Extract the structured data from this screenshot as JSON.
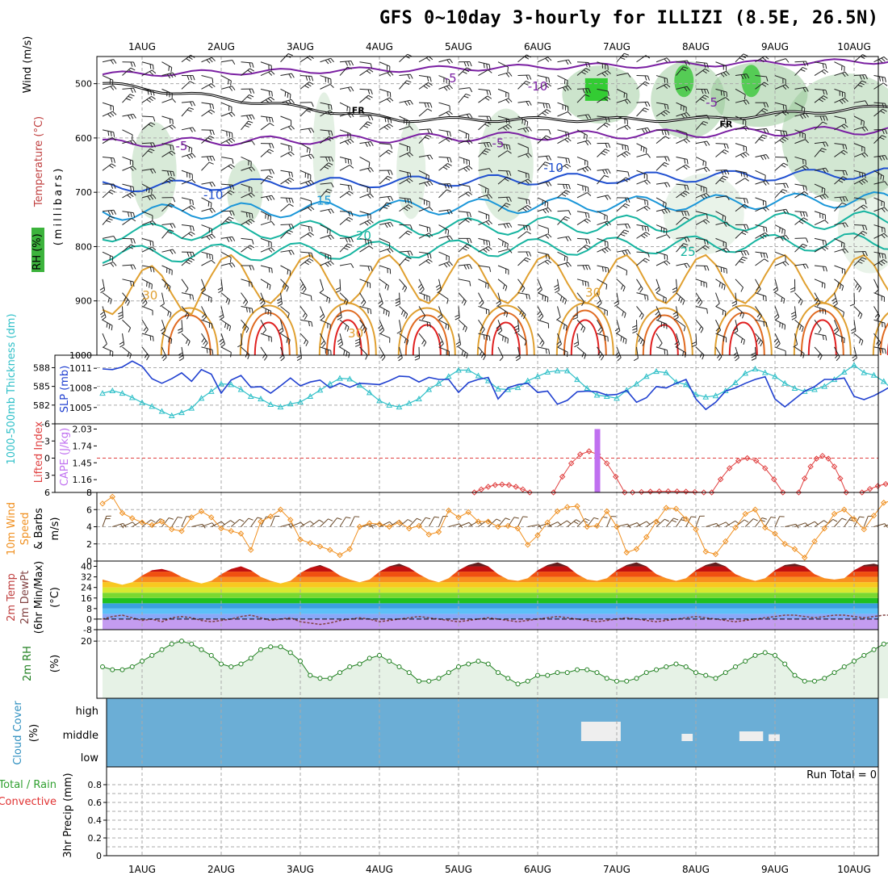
{
  "title": "GFS 0~10day 3-hourly for ILLIZI (8.5E, 26.5N)",
  "dates": [
    "1AUG",
    "2AUG",
    "3AUG",
    "4AUG",
    "5AUG",
    "6AUG",
    "7AUG",
    "8AUG",
    "9AUG",
    "10AUG"
  ],
  "run_total_label": "Run Total = 0",
  "colors": {
    "temp_cold": "#7a1fa2",
    "temp_blue": "#1f4fd0",
    "temp_lightblue": "#1a96d8",
    "temp_teal": "#16b4a0",
    "temp_orange": "#e0a030",
    "temp_dark_orange": "#e06a20",
    "temp_red": "#e02020",
    "slp": "#2040d0",
    "thickness": "#30c0c8",
    "lifted": "#e04040",
    "cape": "#c070f0",
    "wind10": "#f09020",
    "rh2m": "#208020",
    "cloud_bg": "#6baed6"
  },
  "chart_data": [
    {
      "type": "line",
      "name": "upper-air",
      "ylabel_parts": [
        "Wind (m/s)",
        "Temperature (°C)",
        "RH (%)"
      ],
      "ylabel_unit": "(millibars)",
      "ylim": [
        450,
        1000
      ],
      "yticks": [
        500,
        600,
        700,
        800,
        900,
        1000
      ],
      "contour_labels": [
        {
          "text": "-5",
          "day": 3.9,
          "p": 490,
          "color": "temp_cold"
        },
        {
          "text": "-5",
          "day": 0.5,
          "p": 615,
          "color": "temp_cold"
        },
        {
          "text": "-5",
          "day": 4.5,
          "p": 610,
          "color": "temp_cold"
        },
        {
          "text": "-5",
          "day": 7.2,
          "p": 535,
          "color": "temp_cold"
        },
        {
          "text": "-10",
          "day": 5.0,
          "p": 505,
          "color": "temp_cold"
        },
        {
          "text": "-10",
          "day": 0.9,
          "p": 705,
          "color": "temp_blue"
        },
        {
          "text": "-10",
          "day": 5.2,
          "p": 655,
          "color": "temp_blue"
        },
        {
          "text": "15",
          "day": 2.3,
          "p": 715,
          "color": "temp_lightblue"
        },
        {
          "text": "20",
          "day": 2.8,
          "p": 780,
          "color": "temp_teal"
        },
        {
          "text": "25",
          "day": 6.9,
          "p": 810,
          "color": "temp_teal"
        },
        {
          "text": "30",
          "day": 0.1,
          "p": 890,
          "color": "temp_orange"
        },
        {
          "text": "30",
          "day": 5.7,
          "p": 885,
          "color": "temp_orange"
        },
        {
          "text": "30",
          "day": 2.7,
          "p": 960,
          "color": "temp_orange"
        }
      ],
      "freezing_label": "FR"
    },
    {
      "type": "line",
      "name": "slp-thickness",
      "ylabel_left": "1000-500mb Thickness (dm)",
      "ylabel_right": "SLP (mb)",
      "thickness_ticks": [
        582,
        585,
        588
      ],
      "slp_ticks": [
        1005,
        1008,
        1011
      ],
      "series": [
        {
          "name": "SLP (mb)",
          "values": [
            1010.9,
            1010.8,
            1011.2,
            1012.1,
            1011.3,
            1009.4,
            1008.7,
            1009.4,
            1010.3,
            1009.0,
            1010.8,
            1010.1,
            1007.2,
            1009.2,
            1009.9,
            1008.1,
            1008.2,
            1007.2,
            1008.3,
            1009.5,
            1008.3,
            1008.9,
            1009.2,
            1008.0,
            1008.7,
            1008.1,
            1008.7,
            1008.6,
            1008.5,
            1009.1,
            1009.8,
            1009.7,
            1008.9,
            1009.6,
            1009.3,
            1009.3,
            1007.3,
            1008.8,
            1009.3,
            1009.6,
            1006.3,
            1008.0,
            1008.5,
            1008.7,
            1007.3,
            1007.5,
            1005.5,
            1006.1,
            1007.4,
            1007.5,
            1007.4,
            1006.9,
            1007.0,
            1007.6,
            1005.8,
            1006.5,
            1008.2,
            1008.0,
            1008.7,
            1009.3,
            1006.3,
            1004.7,
            1005.8,
            1007.5,
            1008.0,
            1008.7,
            1009.3,
            1009.7,
            1006.3,
            1005.1,
            1006.3,
            1007.5,
            1008.2,
            1009.3,
            1009.3,
            1009.5,
            1006.7,
            1006.2,
            1006.8,
            1007.6,
            1008.5
          ]
        },
        {
          "name": "Thickness (dm)",
          "values": [
            583.9,
            584.3,
            583.9,
            583.2,
            582.4,
            581.8,
            581.0,
            580.3,
            580.8,
            581.5,
            583.1,
            584.2,
            585.4,
            585.3,
            584.5,
            583.4,
            583.0,
            582.1,
            581.7,
            582.2,
            582.5,
            583.4,
            584.4,
            585.4,
            586.3,
            586.2,
            585.2,
            584.0,
            582.7,
            582.0,
            581.7,
            582.3,
            583.0,
            584.5,
            585.5,
            586.6,
            587.6,
            587.6,
            586.7,
            585.9,
            584.6,
            584.5,
            584.8,
            585.9,
            586.6,
            587.3,
            587.5,
            587.5,
            586.1,
            584.7,
            583.6,
            583.4,
            583.1,
            584.4,
            585.4,
            586.6,
            587.4,
            587.2,
            585.7,
            585.3,
            583.7,
            583.3,
            583.5,
            584.3,
            585.6,
            587.1,
            587.8,
            587.2,
            586.6,
            585.5,
            584.7,
            584.2,
            584.5,
            585.0,
            586.1,
            587.3,
            588.4,
            587.2,
            586.8,
            585.8,
            584.3
          ]
        }
      ]
    },
    {
      "type": "line",
      "name": "lifted-cape",
      "ylabel_left": "Lifted Index",
      "ylabel_right": "CAPE (J/kg)",
      "li_ticks": [
        -6,
        -3,
        0,
        3,
        6
      ],
      "cape_ticks": [
        1.16,
        1.45,
        1.74,
        2.03
      ],
      "cape_bar": {
        "day": 5.75,
        "value": 2.03
      }
    },
    {
      "type": "line",
      "name": "10m-wind",
      "ylabel": "10m Wind Speed & Barbs (m/s)",
      "ylim": [
        0,
        8
      ],
      "yticks": [
        0,
        2,
        4,
        6,
        8
      ],
      "values": [
        6.7,
        7.5,
        5.6,
        5.0,
        4.5,
        4.2,
        4.6,
        3.7,
        3.5,
        5.1,
        5.8,
        5.1,
        3.8,
        3.5,
        3.2,
        1.3,
        4.6,
        5.2,
        6.0,
        4.8,
        2.5,
        2.1,
        1.7,
        1.3,
        0.7,
        1.4,
        4.0,
        4.4,
        4.3,
        4.0,
        4.5,
        3.8,
        4.1,
        3.1,
        3.4,
        5.9,
        5.1,
        5.7,
        4.6,
        4.6,
        4.0,
        4.1,
        3.8,
        1.9,
        3.0,
        4.5,
        5.8,
        6.3,
        6.4,
        4.0,
        4.1,
        5.8,
        4.0,
        1.0,
        1.4,
        2.8,
        4.6,
        6.2,
        6.1,
        4.9,
        3.7,
        1.1,
        0.8,
        2.3,
        3.9,
        5.5,
        6.0,
        3.9,
        3.2,
        2.0,
        1.4,
        0.4,
        2.3,
        3.8,
        5.5,
        6.0,
        4.9,
        3.7,
        5.3,
        6.8,
        7.1
      ]
    },
    {
      "type": "area",
      "name": "2m-temp",
      "ylabel": "2m Temp 2m DewPt (6hr Min/Max) (°C)",
      "ylim": [
        -8,
        44
      ],
      "yticks": [
        -8,
        0,
        8,
        16,
        24,
        32,
        40
      ],
      "temp": [
        30,
        28,
        26,
        28,
        33,
        37,
        38,
        36,
        32,
        29,
        27,
        29,
        34,
        38,
        40,
        37,
        32,
        29,
        27,
        29,
        35,
        39,
        41,
        38,
        33,
        30,
        28,
        30,
        36,
        40,
        42,
        39,
        34,
        30,
        28,
        31,
        37,
        41,
        43,
        40,
        34,
        30,
        29,
        31,
        37,
        41,
        43,
        40,
        34,
        30,
        29,
        31,
        37,
        41,
        43,
        40,
        34,
        31,
        29,
        31,
        37,
        41,
        43,
        40,
        34,
        31,
        29,
        31,
        37,
        41,
        42,
        40,
        34,
        31,
        30,
        31,
        37,
        41,
        42,
        40,
        34
      ],
      "dewpoint": [
        0,
        2,
        3,
        1,
        -1,
        0,
        -2,
        1,
        2,
        1,
        -1,
        -2,
        -1,
        0,
        2,
        3,
        1,
        -1,
        0,
        1,
        -2,
        -3,
        -4,
        -3,
        -1,
        0,
        1,
        0,
        -2,
        -1,
        0,
        1,
        2,
        1,
        0,
        -1,
        -2,
        -1,
        0,
        1,
        0,
        -1,
        -2,
        -1,
        0,
        1,
        2,
        1,
        0,
        -1,
        -2,
        -1,
        0,
        1,
        0,
        -1,
        -2,
        -1,
        0,
        1,
        2,
        1,
        0,
        -1,
        -2,
        -1,
        0,
        1,
        2,
        3,
        3,
        2,
        1,
        2,
        3,
        3,
        2,
        1,
        2,
        3,
        3
      ]
    },
    {
      "type": "line",
      "name": "2m-rh",
      "ylabel": "2m RH (%)",
      "ylim": [
        0,
        24
      ],
      "yticks": [
        20
      ],
      "values": [
        11,
        10,
        10,
        11,
        13,
        15,
        17,
        19,
        20,
        19,
        17,
        15,
        12,
        11,
        12,
        14,
        17,
        18,
        18,
        16,
        13,
        8,
        7,
        7,
        9,
        11,
        12,
        14,
        15,
        13,
        11,
        9,
        6,
        6,
        7,
        9,
        11,
        12,
        13,
        12,
        9,
        7,
        5,
        6,
        8,
        8,
        9,
        9,
        10,
        10,
        9,
        7,
        6,
        6,
        7,
        9,
        10,
        11,
        12,
        11,
        9,
        8,
        7,
        9,
        11,
        13,
        15,
        16,
        15,
        12,
        8,
        6,
        6,
        7,
        9,
        11,
        13,
        15,
        17,
        19,
        20
      ]
    },
    {
      "type": "bar",
      "name": "cloud-cover",
      "ylabel": "Cloud Cover (%)",
      "levels": [
        "high",
        "middle",
        "low"
      ],
      "patches": [
        {
          "day_start": 5.55,
          "day_end": 6.05,
          "level": "middle",
          "size": 0.9
        },
        {
          "day_start": 6.82,
          "day_end": 6.96,
          "level": "middle",
          "size": 0.15
        },
        {
          "day_start": 7.55,
          "day_end": 7.85,
          "level": "middle",
          "size": 0.3
        },
        {
          "day_start": 7.92,
          "day_end": 8.06,
          "level": "middle",
          "size": 0.12
        }
      ]
    },
    {
      "type": "bar",
      "name": "precip",
      "ylabel_left": "Total / Rain",
      "ylabel_left2": "Convective",
      "ylabel": "3hr Precip (mm)",
      "ylim": [
        0,
        1
      ],
      "yticks": [
        0,
        0.2,
        0.4,
        0.6,
        0.8
      ],
      "values": []
    }
  ]
}
